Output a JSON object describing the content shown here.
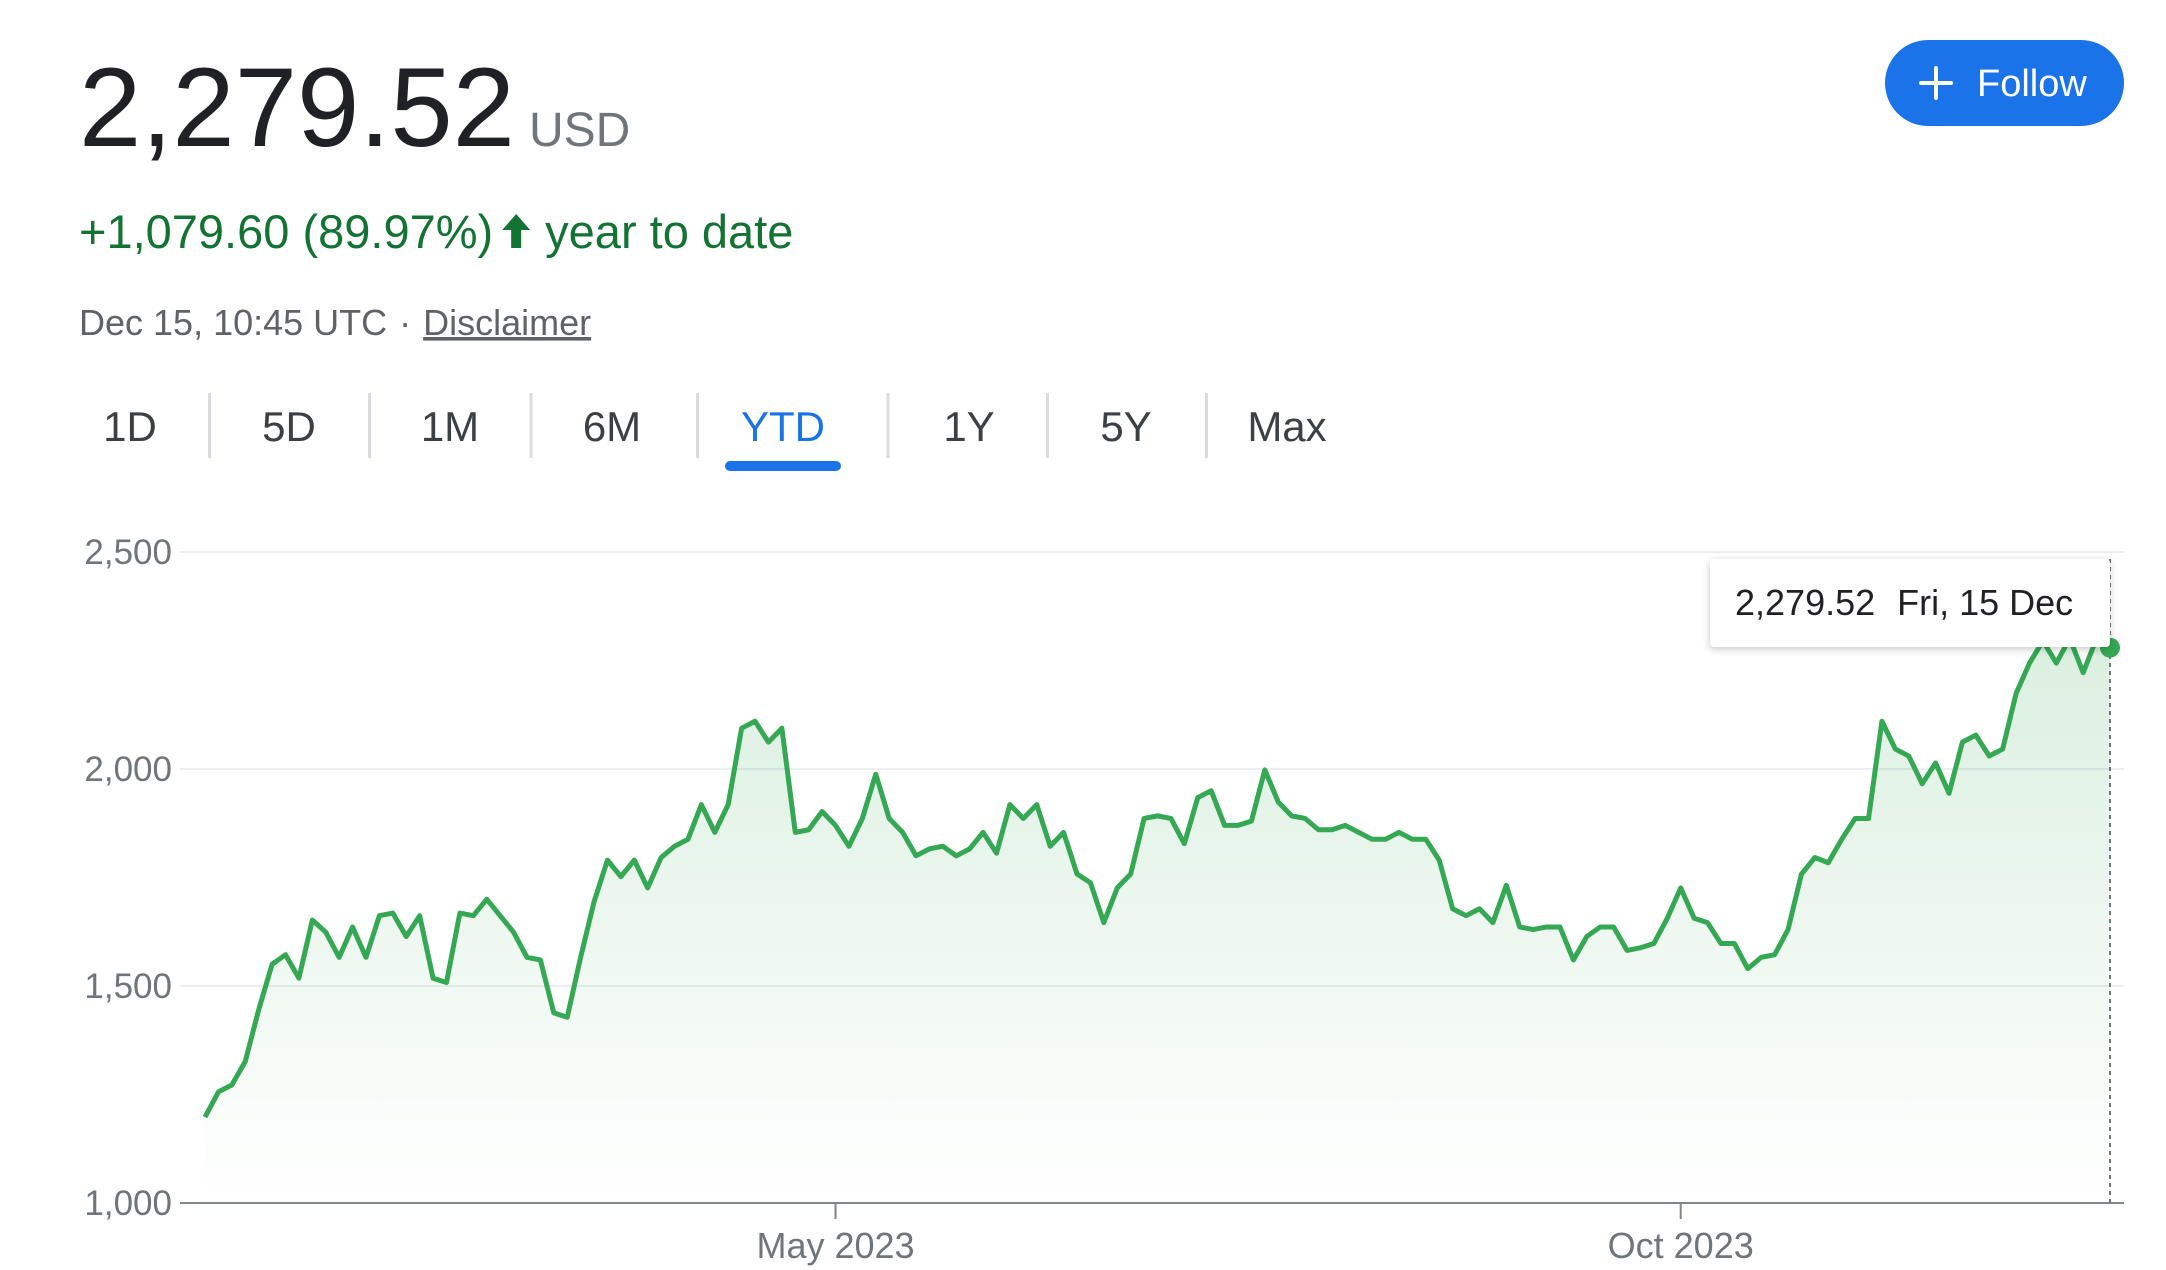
{
  "header": {
    "price": "2,279.52",
    "currency": "USD",
    "change": "+1,079.60 (89.97%)",
    "period": "year to date",
    "timestamp": "Dec 15, 10:45 UTC",
    "separator": "·",
    "disclaimer": "Disclaimer",
    "follow_button": "Follow"
  },
  "tabs": [
    "1D",
    "5D",
    "1M",
    "6M",
    "YTD",
    "1Y",
    "5Y",
    "Max"
  ],
  "active_tab": 4,
  "chart_data": {
    "type": "line",
    "tooltip": {
      "value": "2,279.52",
      "date": "Fri, 15 Dec"
    },
    "categories": [
      null,
      null,
      null,
      null,
      null,
      null,
      null,
      null,
      null,
      null,
      null,
      null,
      null,
      null,
      null,
      null,
      null,
      null,
      null,
      null,
      null,
      null,
      null,
      null,
      null,
      null,
      null,
      null,
      null,
      null,
      null,
      null,
      null,
      null,
      null,
      null,
      null,
      null,
      null,
      null,
      null,
      null,
      null,
      null,
      null,
      null,
      null,
      "May 2023",
      null,
      null,
      null,
      null,
      null,
      null,
      null,
      null,
      null,
      null,
      null,
      null,
      null,
      null,
      null,
      null,
      null,
      null,
      null,
      null,
      null,
      null,
      null,
      null,
      null,
      null,
      null,
      null,
      null,
      null,
      null,
      null,
      null,
      null,
      null,
      null,
      null,
      null,
      null,
      null,
      null,
      null,
      null,
      null,
      null,
      null,
      null,
      null,
      null,
      null,
      null,
      null,
      null,
      null,
      null,
      null,
      null,
      null,
      null,
      null,
      null,
      null,
      "Oct 2023",
      null,
      null,
      null,
      null,
      null,
      null,
      null,
      null,
      null,
      null,
      null,
      null,
      null,
      null,
      null,
      null,
      null,
      null,
      null,
      null,
      null,
      null,
      null,
      null,
      null,
      null,
      null,
      null,
      null,
      null,
      null,
      null
    ],
    "series": [
      {
        "color": "#34a853",
        "values": [
          1198,
          1256,
          1272,
          1326,
          1445,
          1550,
          1572,
          1518,
          1652,
          1624,
          1566,
          1636,
          1566,
          1662,
          1668,
          1614,
          1662,
          1518,
          1508,
          1668,
          1662,
          1700,
          1662,
          1624,
          1566,
          1560,
          1438,
          1428,
          1566,
          1694,
          1790,
          1752,
          1790,
          1726,
          1796,
          1822,
          1838,
          1918,
          1854,
          1918,
          2094,
          2110,
          2062,
          2094,
          1854,
          1860,
          1902,
          1870,
          1822,
          1886,
          1988,
          1886,
          1854,
          1800,
          1816,
          1822,
          1800,
          1816,
          1854,
          1806,
          1918,
          1886,
          1918,
          1822,
          1854,
          1758,
          1738,
          1646,
          1726,
          1758,
          1886,
          1892,
          1886,
          1828,
          1934,
          1950,
          1870,
          1870,
          1880,
          1998,
          1924,
          1892,
          1886,
          1860,
          1860,
          1870,
          1854,
          1838,
          1838,
          1854,
          1838,
          1838,
          1790,
          1678,
          1662,
          1678,
          1646,
          1732,
          1636,
          1630,
          1636,
          1636,
          1560,
          1614,
          1636,
          1636,
          1582,
          1588,
          1598,
          1656,
          1726,
          1656,
          1646,
          1598,
          1598,
          1540,
          1566,
          1572,
          1630,
          1758,
          1796,
          1784,
          1838,
          1886,
          1886,
          2110,
          2046,
          2030,
          1966,
          2014,
          1944,
          2062,
          2078,
          2030,
          2046,
          2174,
          2244,
          2295,
          2244,
          2301,
          2222,
          2301,
          2279.52
        ]
      }
    ],
    "ylim": [
      1000,
      2500
    ],
    "yticks": [
      {
        "value": 1000,
        "label": "1,000"
      },
      {
        "value": 1500,
        "label": "1,500"
      },
      {
        "value": 2000,
        "label": "2,000"
      },
      {
        "value": 2500,
        "label": "2,500"
      }
    ],
    "grid": true
  }
}
